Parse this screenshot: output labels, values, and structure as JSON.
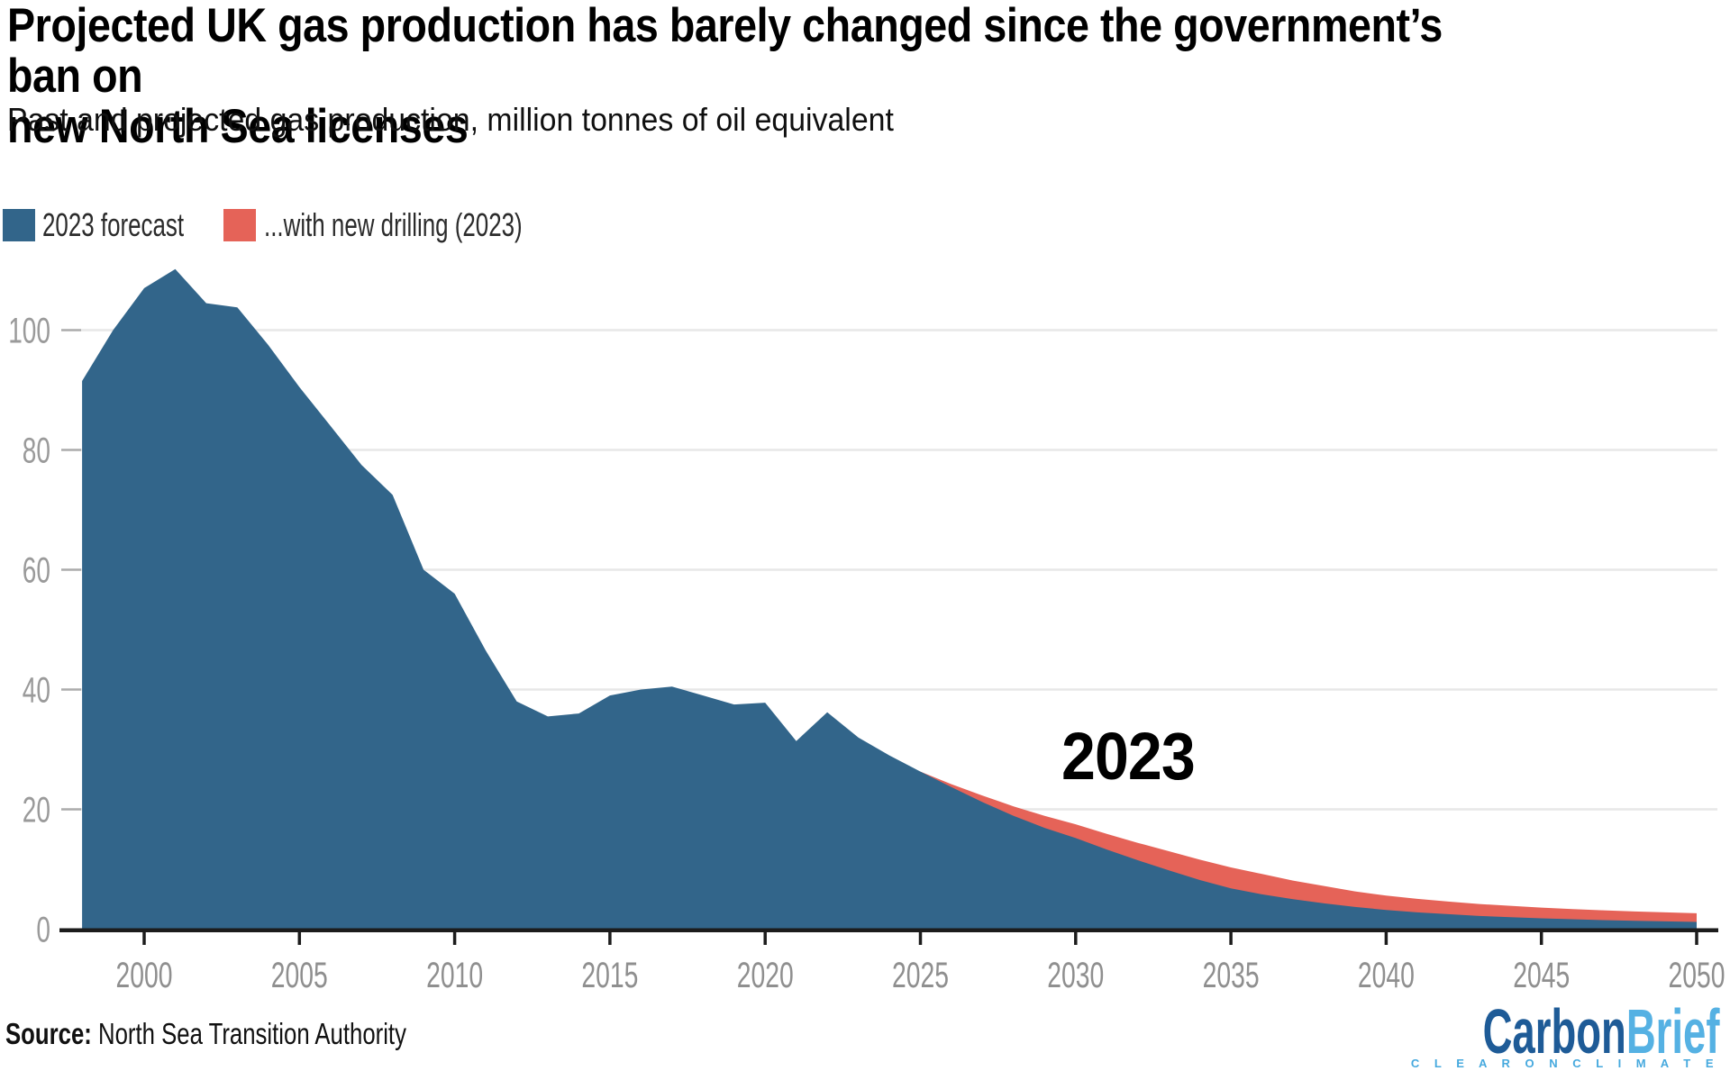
{
  "header": {
    "title_line1": "Projected UK gas production has barely changed since the government’s ban on",
    "title_line2": "new North Sea licenses",
    "subtitle": "Past and projected gas production, million tonnes of oil equivalent"
  },
  "legend": [
    {
      "label": "2023 forecast",
      "color": "#32658a"
    },
    {
      "label": "...with new drilling (2023)",
      "color": "#e56358"
    }
  ],
  "annotation": {
    "label": "2023"
  },
  "footer": {
    "source_label": "Source:",
    "source_text": " North Sea Transition Authority",
    "logo_part1": "Carbon",
    "logo_part2": "Brief",
    "logo_tagline": "C L E A R   O N   C L I M A T E",
    "logo_color1": "#1e5b97",
    "logo_color2": "#55b1e3",
    "tagline_color": "#46a9de"
  },
  "chart_data": {
    "type": "area",
    "title": "Projected UK gas production has barely changed since the government’s ban on new North Sea licenses",
    "subtitle": "Past and projected gas production, million tonnes of oil equivalent",
    "xlabel": "",
    "ylabel": "million tonnes of oil equivalent",
    "annotation": "2023",
    "source": "North Sea Transition Authority",
    "grid": true,
    "legend_position": "top-left",
    "xlim": [
      1998,
      2050
    ],
    "ylim": [
      0,
      113
    ],
    "xticks": [
      2000,
      2005,
      2010,
      2015,
      2020,
      2025,
      2030,
      2035,
      2040,
      2045,
      2050
    ],
    "yticks": [
      0,
      20,
      40,
      60,
      80,
      100
    ],
    "x": [
      1998,
      1999,
      2000,
      2001,
      2002,
      2003,
      2004,
      2005,
      2006,
      2007,
      2008,
      2009,
      2010,
      2011,
      2012,
      2013,
      2014,
      2015,
      2016,
      2017,
      2018,
      2019,
      2020,
      2021,
      2022,
      2023,
      2024,
      2025,
      2026,
      2027,
      2028,
      2029,
      2030,
      2031,
      2032,
      2033,
      2034,
      2035,
      2036,
      2037,
      2038,
      2039,
      2040,
      2041,
      2042,
      2043,
      2044,
      2045,
      2046,
      2047,
      2048,
      2049,
      2050
    ],
    "series": [
      {
        "name": "2023 forecast",
        "color": "#32658a",
        "values": [
          91.5,
          100,
          107,
          110.2,
          104.5,
          103.8,
          97.5,
          90.5,
          84,
          77.5,
          72.5,
          60,
          56,
          46.5,
          38,
          35.5,
          36,
          39,
          40,
          40.5,
          39,
          37.5,
          37.8,
          31.4,
          36.2,
          32,
          29,
          26.3,
          23.7,
          21.2,
          18.9,
          16.9,
          15.2,
          13.3,
          11.5,
          9.8,
          8.2,
          6.8,
          5.8,
          5.0,
          4.3,
          3.7,
          3.2,
          2.8,
          2.5,
          2.2,
          2.0,
          1.8,
          1.65,
          1.5,
          1.4,
          1.3,
          1.2
        ]
      },
      {
        "name": "...with new drilling (2023)",
        "color": "#e56358",
        "values": [
          null,
          null,
          null,
          null,
          null,
          null,
          null,
          null,
          null,
          null,
          null,
          null,
          null,
          null,
          null,
          null,
          null,
          null,
          null,
          null,
          null,
          null,
          null,
          null,
          null,
          null,
          null,
          26.3,
          24.2,
          22.3,
          20.5,
          18.9,
          17.5,
          15.9,
          14.4,
          13.0,
          11.6,
          10.3,
          9.2,
          8.1,
          7.2,
          6.3,
          5.6,
          5.05,
          4.6,
          4.2,
          3.9,
          3.6,
          3.35,
          3.15,
          2.95,
          2.8,
          2.65
        ]
      }
    ],
    "styling": {
      "gridline_color": "#e7e7e7",
      "y_dash_color": "#ababab",
      "axis_color": "#1c1c1c",
      "x_label_color": "#8f8f8f",
      "y_label_color": "#9a9a9a"
    }
  }
}
